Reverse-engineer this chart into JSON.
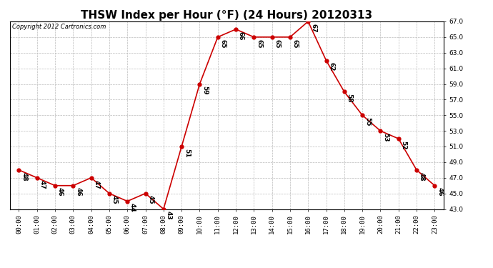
{
  "title": "THSW Index per Hour (°F) (24 Hours) 20120313",
  "copyright": "Copyright 2012 Cartronics.com",
  "hours": [
    0,
    1,
    2,
    3,
    4,
    5,
    6,
    7,
    8,
    9,
    10,
    11,
    12,
    13,
    14,
    15,
    16,
    17,
    18,
    19,
    20,
    21,
    22,
    23
  ],
  "values": [
    48,
    47,
    46,
    46,
    47,
    45,
    44,
    45,
    43,
    51,
    59,
    65,
    66,
    65,
    65,
    65,
    67,
    62,
    58,
    55,
    53,
    52,
    48,
    46
  ],
  "x_labels": [
    "00:00",
    "01:00",
    "02:00",
    "03:00",
    "04:00",
    "05:00",
    "06:00",
    "07:00",
    "08:00",
    "09:00",
    "10:00",
    "11:00",
    "12:00",
    "13:00",
    "14:00",
    "15:00",
    "16:00",
    "17:00",
    "18:00",
    "19:00",
    "20:00",
    "21:00",
    "22:00",
    "23:00"
  ],
  "ylim": [
    43.0,
    67.0
  ],
  "yticks": [
    43.0,
    45.0,
    47.0,
    49.0,
    51.0,
    53.0,
    55.0,
    57.0,
    59.0,
    61.0,
    63.0,
    65.0,
    67.0
  ],
  "line_color": "#cc0000",
  "marker_color": "#cc0000",
  "bg_color": "#ffffff",
  "grid_color": "#bbbbbb",
  "title_fontsize": 11,
  "label_fontsize": 6.5,
  "annotation_fontsize": 6.5,
  "copyright_fontsize": 6
}
